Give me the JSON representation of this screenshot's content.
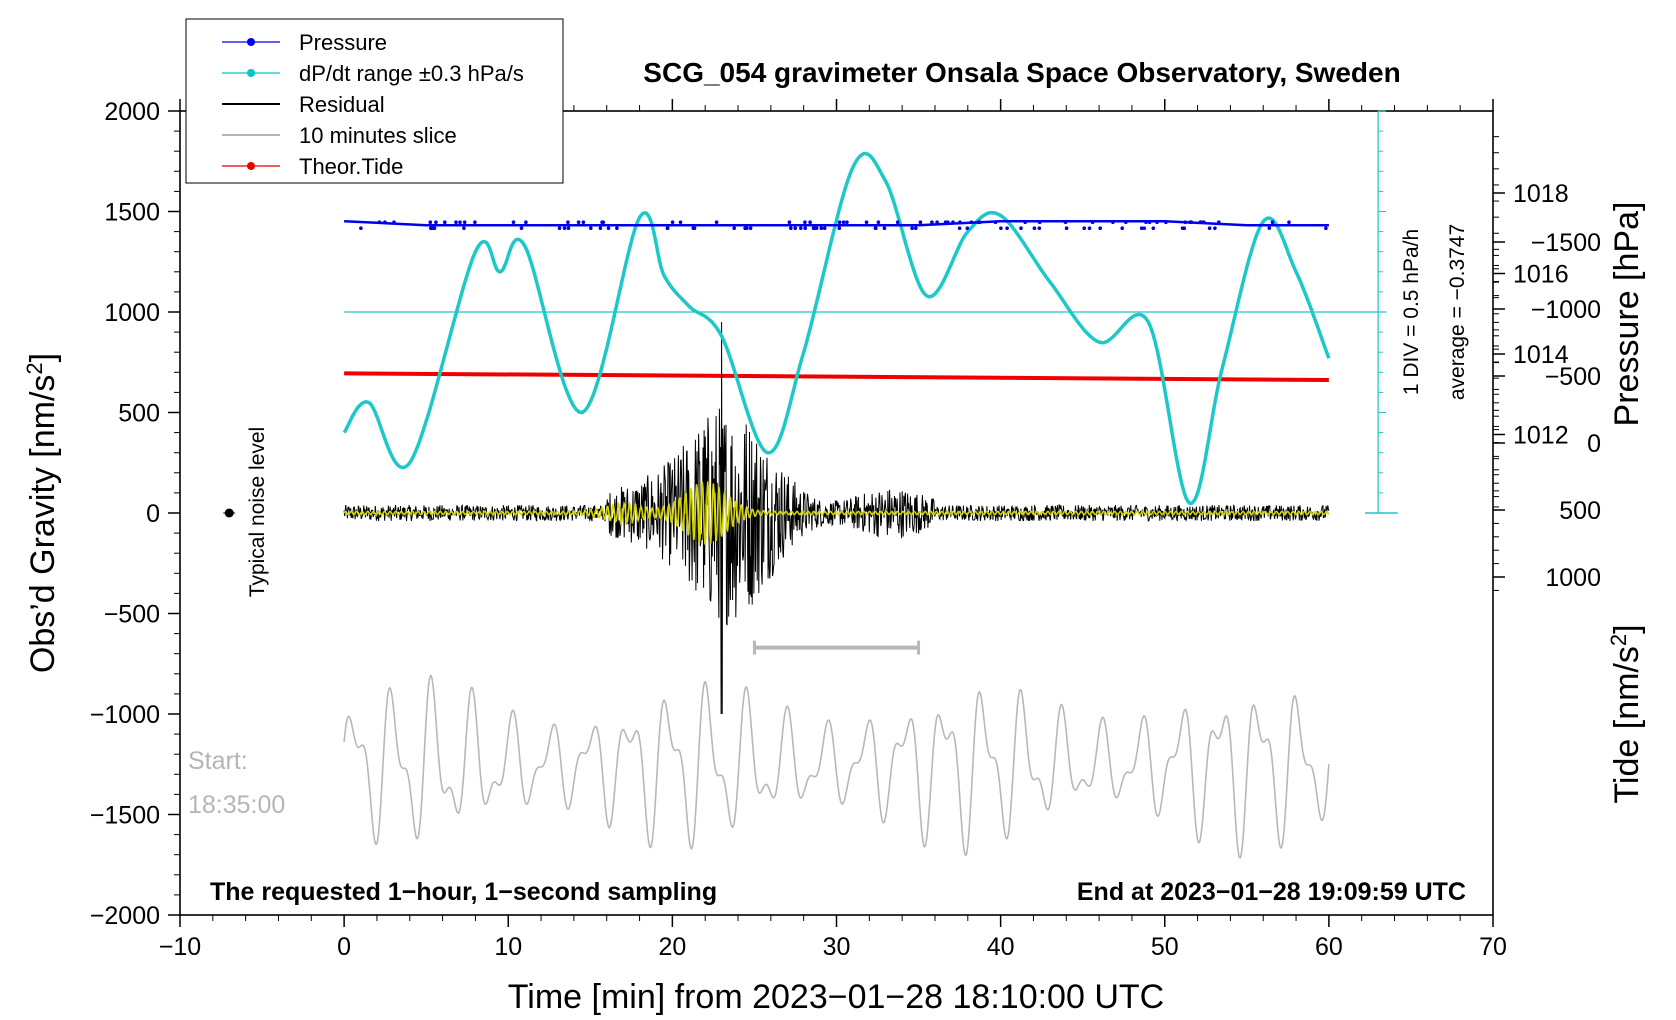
{
  "chart_data": {
    "type": "line",
    "title": "SCG_054 gravimeter Onsala Space Observatory, Sweden",
    "xlabel": "Time [min] from 2023−01−28 18:10:00 UTC",
    "xlim": [
      -10,
      70
    ],
    "x_ticks": [
      "−10",
      "0",
      "10",
      "20",
      "30",
      "40",
      "50",
      "60",
      "70"
    ],
    "y_left": {
      "label": "Obs’d Gravity [nm/s",
      "label_sup": "2",
      "label_close": "]",
      "lim": [
        -2000,
        2000
      ],
      "ticks": [
        "2000",
        "1500",
        "1000",
        "500",
        "0",
        "−500",
        "−1000",
        "−1500",
        "−2000"
      ]
    },
    "y_pressure": {
      "label": "Pressure [hPa]",
      "ticks": [
        "1018",
        "1016",
        "1014",
        "1012"
      ],
      "tick_values": [
        1018,
        1016,
        1014,
        1012
      ]
    },
    "y_tide": {
      "label": "Tide [nm/s",
      "label_sup": "2",
      "label_close": "]",
      "ticks": [
        "1000",
        "500",
        "0",
        "−500",
        "−1000",
        "−1500"
      ],
      "tick_values": [
        1000,
        500,
        0,
        -500,
        -1000,
        -1500
      ]
    },
    "legend": {
      "placement": "top-left",
      "entries": [
        {
          "name": "Pressure",
          "color": "#0000ee",
          "marker": true
        },
        {
          "name": "dP/dt range ±0.3 hPa/s",
          "color": "#00c8c8",
          "marker": true
        },
        {
          "name": "Residual",
          "color": "#000000",
          "marker": false
        },
        {
          "name": "10 minutes slice",
          "color": "#b4b4b4",
          "marker": false
        },
        {
          "name": "Theor.Tide",
          "color": "#ee0000",
          "marker": true
        }
      ]
    },
    "annotations": {
      "left_note": "The requested 1−hour, 1−second sampling",
      "right_note": "End at 2023−01−28 19:09:59 UTC",
      "noise_label": "Typical noise level",
      "noise_marker_x": -7,
      "start_label": "Start:",
      "start_time": "18:35:00",
      "slice_bar_range_min": [
        25,
        35
      ],
      "slice_bar_gravity": -670,
      "pressure_scale_note": "1 DIV = 0.5 hPa/h",
      "pressure_average_note": "average = −0.3747"
    },
    "series": [
      {
        "name": "Pressure",
        "unit": "hPa",
        "x": [
          0,
          5,
          10,
          15,
          20,
          25,
          30,
          35,
          40,
          45,
          50,
          55,
          60
        ],
        "values": [
          1017.3,
          1017.2,
          1017.2,
          1017.2,
          1017.2,
          1017.2,
          1017.2,
          1017.2,
          1017.3,
          1017.3,
          1017.3,
          1017.2,
          1017.2
        ]
      },
      {
        "name": "dP/dt",
        "unit": "gravity-axis nm/s2 (display)",
        "x": [
          0,
          1.5,
          4,
          8,
          9.5,
          11,
          14.5,
          18,
          19.5,
          21,
          23,
          25.8,
          28,
          31,
          33,
          35.5,
          38,
          40,
          43,
          46,
          49,
          51.5,
          53.5,
          56,
          58,
          60
        ],
        "values": [
          400,
          550,
          250,
          1300,
          1200,
          1330,
          500,
          1470,
          1180,
          1030,
          880,
          300,
          800,
          1720,
          1650,
          1080,
          1400,
          1480,
          1150,
          850,
          950,
          50,
          720,
          1450,
          1200,
          770
        ]
      },
      {
        "name": "Residual",
        "unit": "nm/s2",
        "x_range": [
          0,
          60
        ],
        "peak_min": 23,
        "peak_max": 950,
        "peak_low": -1000
      },
      {
        "name": "10 minutes slice",
        "unit": "nm/s2 (display)",
        "x_range": [
          0,
          60
        ],
        "center": -1250,
        "amplitude": 470
      },
      {
        "name": "Theor.Tide",
        "unit": "nm/s2",
        "x": [
          0,
          60
        ],
        "values": [
          -520,
          -470
        ]
      }
    ],
    "grid": false
  }
}
